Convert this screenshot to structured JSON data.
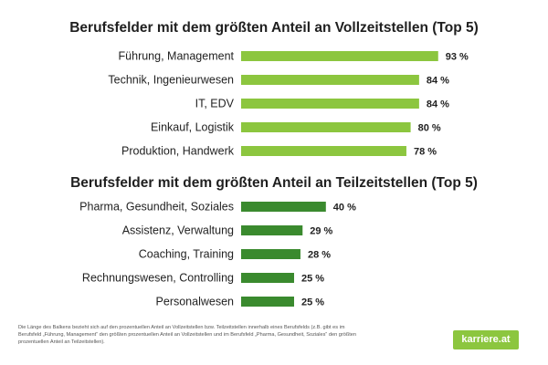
{
  "chart_data": [
    {
      "type": "bar",
      "orientation": "horizontal",
      "title": "Berufsfelder mit dem größten Anteil an Vollzeitstellen (Top 5)",
      "categories": [
        "Führung, Management",
        "Technik, Ingenieurwesen",
        "IT, EDV",
        "Einkauf, Logistik",
        "Produktion, Handwerk"
      ],
      "values": [
        93,
        84,
        84,
        80,
        78
      ],
      "value_labels": [
        "93 %",
        "84 %",
        "84 %",
        "80 %",
        "78 %"
      ],
      "color": "#8cc63f"
    },
    {
      "type": "bar",
      "orientation": "horizontal",
      "title": "Berufsfelder mit dem größten Anteil an Teilzeitstellen (Top 5)",
      "categories": [
        "Pharma, Gesundheit, Soziales",
        "Assistenz, Verwaltung",
        "Coaching, Training",
        "Rechnungswesen, Controlling",
        "Personalwesen"
      ],
      "values": [
        40,
        29,
        28,
        25,
        25
      ],
      "value_labels": [
        "40 %",
        "29 %",
        "28 %",
        "25 %",
        "25 %"
      ],
      "color": "#3a8a2e"
    }
  ],
  "footnote": "Die Länge des Balkens bezieht sich auf den prozentuellen Anteil an Vollzeitstellen bzw. Teilzeitstellen innerhalb eines Berufsfelds (z.B. gibt es im Berufsfeld „Führung, Management“ den größten prozentuellen Anteil an Vollzeitstellen und im Berufsfeld „Pharma, Gesundheit, Soziales“ den größten prozentuellen Anteil an Teilzeitstellen).",
  "logo_text": "karriere.at"
}
